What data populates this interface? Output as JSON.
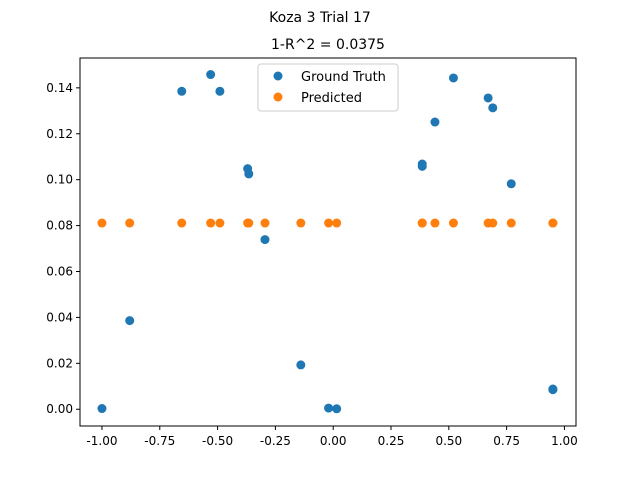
{
  "chart_data": {
    "type": "scatter",
    "suptitle": "Koza 3 Trial 17",
    "title": "1-R^2 = 0.0375",
    "xlabel": "",
    "ylabel": "",
    "xlim": [
      -1.095,
      1.05
    ],
    "ylim": [
      -0.0073,
      0.153
    ],
    "x_ticks": [
      "-1.00",
      "-0.75",
      "-0.50",
      "-0.25",
      "0.00",
      "0.25",
      "0.50",
      "0.75",
      "1.00"
    ],
    "x_tick_values": [
      -1.0,
      -0.75,
      -0.5,
      -0.25,
      0.0,
      0.25,
      0.5,
      0.75,
      1.0
    ],
    "y_ticks": [
      "0.00",
      "0.02",
      "0.04",
      "0.06",
      "0.08",
      "0.10",
      "0.12",
      "0.14"
    ],
    "y_tick_values": [
      0.0,
      0.02,
      0.04,
      0.06,
      0.08,
      0.1,
      0.12,
      0.14
    ],
    "grid": false,
    "legend_position": "top-center",
    "series": [
      {
        "name": "Ground Truth",
        "color": "#1f77b4",
        "points": [
          [
            -1.0,
            0.0003
          ],
          [
            -0.88,
            0.0386
          ],
          [
            -0.655,
            0.1385
          ],
          [
            -0.53,
            0.1458
          ],
          [
            -0.49,
            0.1385
          ],
          [
            -0.37,
            0.1048
          ],
          [
            -0.365,
            0.1025
          ],
          [
            -0.295,
            0.0739
          ],
          [
            -0.14,
            0.0193
          ],
          [
            -0.02,
            0.0005
          ],
          [
            0.015,
            0.0002
          ],
          [
            0.385,
            0.1068
          ],
          [
            0.385,
            0.1058
          ],
          [
            0.44,
            0.1251
          ],
          [
            0.52,
            0.1443
          ],
          [
            0.67,
            0.1356
          ],
          [
            0.69,
            0.1313
          ],
          [
            0.77,
            0.0982
          ],
          [
            0.95,
            0.0085
          ],
          [
            0.95,
            0.0088
          ]
        ]
      },
      {
        "name": "Predicted",
        "color": "#ff7f0e",
        "points": [
          [
            -1.0,
            0.0811
          ],
          [
            -0.88,
            0.0811
          ],
          [
            -0.655,
            0.0811
          ],
          [
            -0.53,
            0.0811
          ],
          [
            -0.49,
            0.0811
          ],
          [
            -0.37,
            0.0811
          ],
          [
            -0.365,
            0.0811
          ],
          [
            -0.295,
            0.0811
          ],
          [
            -0.14,
            0.0811
          ],
          [
            -0.02,
            0.0811
          ],
          [
            0.015,
            0.0811
          ],
          [
            0.385,
            0.0811
          ],
          [
            0.385,
            0.0811
          ],
          [
            0.44,
            0.0811
          ],
          [
            0.52,
            0.0811
          ],
          [
            0.67,
            0.0811
          ],
          [
            0.69,
            0.0811
          ],
          [
            0.77,
            0.0811
          ],
          [
            0.95,
            0.0811
          ],
          [
            0.95,
            0.0811
          ]
        ]
      }
    ]
  }
}
